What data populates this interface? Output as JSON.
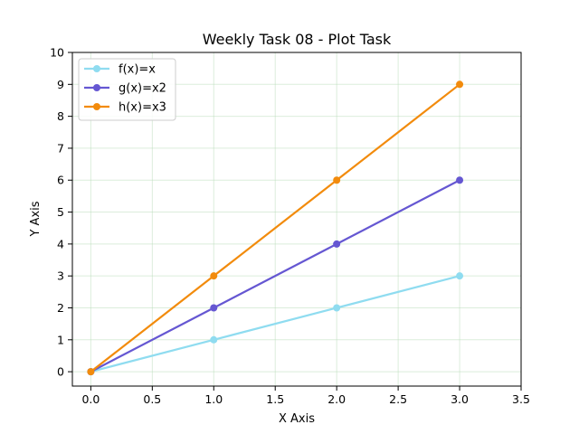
{
  "chart_data": {
    "type": "line",
    "title": "Weekly Task 08 - Plot Task",
    "xlabel": "X Axis",
    "ylabel": "Y Axis",
    "xlim": [
      -0.15,
      3.5
    ],
    "ylim": [
      -0.45,
      10
    ],
    "x_ticks": [
      0,
      0.5,
      1,
      1.5,
      2,
      2.5,
      3,
      3.5
    ],
    "x_tick_labels": [
      "0.0",
      "0.5",
      "1.0",
      "1.5",
      "2.0",
      "2.5",
      "3.0",
      "3.5"
    ],
    "y_ticks": [
      0,
      1,
      2,
      3,
      4,
      5,
      6,
      7,
      8,
      9,
      10
    ],
    "y_tick_labels": [
      "0",
      "1",
      "2",
      "3",
      "4",
      "5",
      "6",
      "7",
      "8",
      "9",
      "10"
    ],
    "grid": true,
    "grid_color": "#b9dcb9",
    "legend_position": "upper-left",
    "x": [
      0,
      1,
      2,
      3
    ],
    "series": [
      {
        "name": "f(x)=x",
        "values": [
          0,
          1,
          2,
          3
        ],
        "color": "#8fdcf0"
      },
      {
        "name": "g(x)=x2",
        "values": [
          0,
          2,
          4,
          6
        ],
        "color": "#6557d2"
      },
      {
        "name": "h(x)=x3",
        "values": [
          0,
          3,
          6,
          9
        ],
        "color": "#f28b0c"
      }
    ]
  }
}
